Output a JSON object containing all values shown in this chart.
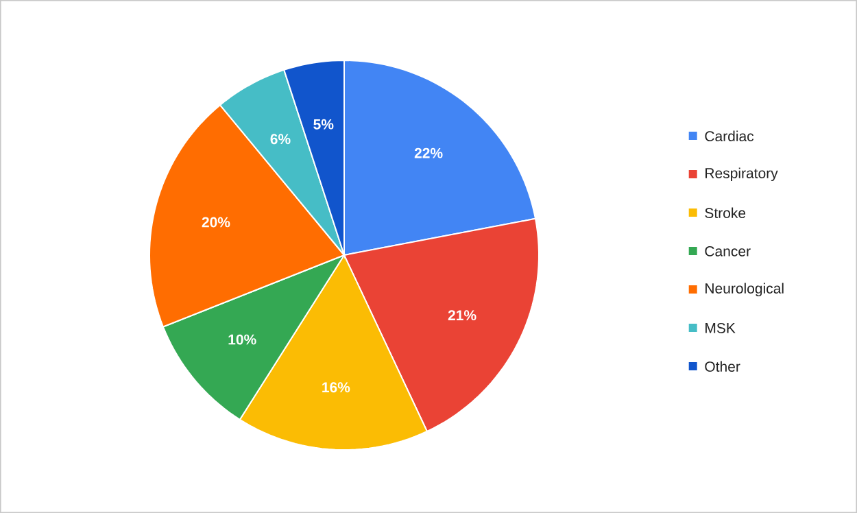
{
  "chart_data": {
    "type": "pie",
    "categories": [
      "Cardiac",
      "Respiratory",
      "Stroke",
      "Cancer",
      "Neurological",
      "MSK",
      "Other"
    ],
    "values": [
      22,
      21,
      16,
      10,
      20,
      6,
      5
    ],
    "value_labels": [
      "22%",
      "21%",
      "16%",
      "10%",
      "20%",
      "6%",
      "5%"
    ],
    "colors": [
      "#4285f4",
      "#ea4335",
      "#fbbc04",
      "#34a853",
      "#ff6d01",
      "#46bdc6",
      "#1155cc"
    ],
    "legend": "right"
  }
}
